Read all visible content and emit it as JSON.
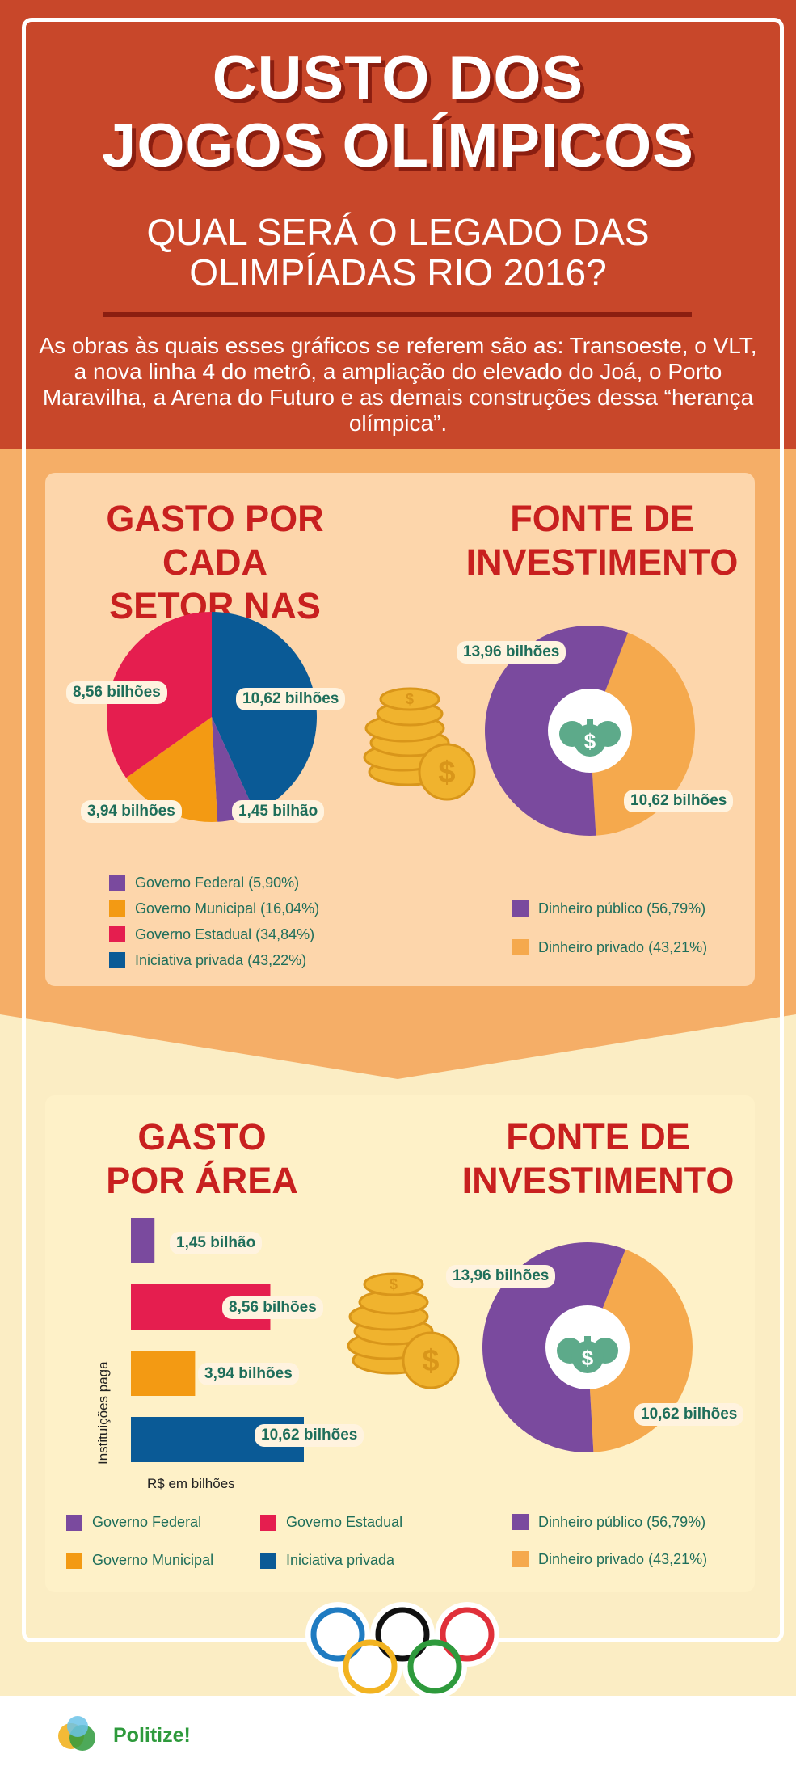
{
  "header": {
    "title_line1": "CUSTO DOS",
    "title_line2": "JOGOS OLÍMPICOS",
    "subtitle_line1": "QUAL SERÁ O LEGADO DAS",
    "subtitle_line2": "OLIMPÍADAS RIO 2016?",
    "intro": "As obras às quais esses gráficos se referem são as: Transoeste, o VLT, a nova linha 4 do metrô, a ampliação do elevado do Joá, o Porto Maravilha, a Arena do Futuro e as demais construções dessa “herança olímpica”."
  },
  "section1": {
    "left_title_line1": "GASTO POR CADA",
    "left_title_line2": "SETOR NAS OBRAS",
    "right_title_line1": "FONTE DE",
    "right_title_line2": "INVESTIMENTO",
    "legend": [
      {
        "label": "Governo Federal (5,90%)",
        "color": "#7A4A9E"
      },
      {
        "label": "Governo Municipal (16,04%)",
        "color": "#F39A13"
      },
      {
        "label": "Governo Estadual (34,84%)",
        "color": "#E51E4F"
      },
      {
        "label": "Iniciativa privada (43,22%)",
        "color": "#0A5A96"
      }
    ],
    "source_legend": [
      {
        "label": "Dinheiro público (56,79%)",
        "color": "#7A4A9E"
      },
      {
        "label": "Dinheiro privado (43,21%)",
        "color": "#F5A94D"
      }
    ]
  },
  "section2": {
    "left_title_line1": "GASTO",
    "left_title_line2": "POR ÁREA",
    "right_title_line1": "FONTE  DE",
    "right_title_line2": "INVESTIMENTO",
    "y_axis_label": "Instituições paga",
    "x_axis_label": "R$ em bilhões",
    "legend": [
      {
        "label": "Governo Federal",
        "color": "#7A4A9E"
      },
      {
        "label": "Governo Estadual",
        "color": "#E51E4F"
      },
      {
        "label": "Governo Municipal",
        "color": "#F39A13"
      },
      {
        "label": "Iniciativa privada",
        "color": "#0A5A96"
      }
    ],
    "source_legend": [
      {
        "label": "Dinheiro público (56,79%)",
        "color": "#7A4A9E"
      },
      {
        "label": "Dinheiro privado (43,21%)",
        "color": "#F5A94D"
      }
    ]
  },
  "footer": {
    "brand": "Politize!"
  },
  "icons": [
    "coin-stack-icon",
    "money-bags-icon",
    "olympic-rings-icon",
    "politize-logo-icon"
  ],
  "chart_data": [
    {
      "type": "pie",
      "title": "GASTO POR CADA SETOR NAS OBRAS",
      "categories": [
        "Governo Federal",
        "Governo Municipal",
        "Governo Estadual",
        "Iniciativa privada"
      ],
      "values": [
        1.45,
        3.94,
        8.56,
        10.62
      ],
      "percent": [
        5.9,
        16.04,
        34.84,
        43.22
      ],
      "data_labels": [
        "1,45 bilhão",
        "3,94 bilhões",
        "8,56 bilhões",
        "10,62 bilhões"
      ],
      "colors": [
        "#7A4A9E",
        "#F39A13",
        "#E51E4F",
        "#0A5A96"
      ]
    },
    {
      "type": "pie",
      "title": "FONTE DE INVESTIMENTO",
      "categories": [
        "Dinheiro público",
        "Dinheiro privado"
      ],
      "values": [
        13.96,
        10.62
      ],
      "percent": [
        56.79,
        43.21
      ],
      "data_labels": [
        "13,96 bilhões",
        "10,62 bilhões"
      ],
      "colors": [
        "#7A4A9E",
        "#F5A94D"
      ]
    },
    {
      "type": "bar",
      "title": "GASTO POR ÁREA",
      "orientation": "horizontal",
      "categories": [
        "Governo Federal",
        "Governo Estadual",
        "Governo Municipal",
        "Iniciativa privada"
      ],
      "values": [
        1.45,
        8.56,
        3.94,
        10.62
      ],
      "data_labels": [
        "1,45 bilhão",
        "8,56 bilhões",
        "3,94 bilhões",
        "10,62 bilhões"
      ],
      "colors": [
        "#7A4A9E",
        "#E51E4F",
        "#F39A13",
        "#0A5A96"
      ],
      "xlabel": "R$ em bilhões",
      "ylabel": "Instituições paga"
    },
    {
      "type": "pie",
      "title": "FONTE DE INVESTIMENTO",
      "categories": [
        "Dinheiro público",
        "Dinheiro privado"
      ],
      "values": [
        13.96,
        10.62
      ],
      "percent": [
        56.79,
        43.21
      ],
      "data_labels": [
        "13,96 bilhões",
        "10,62 bilhões"
      ],
      "colors": [
        "#7A4A9E",
        "#F5A94D"
      ]
    }
  ]
}
